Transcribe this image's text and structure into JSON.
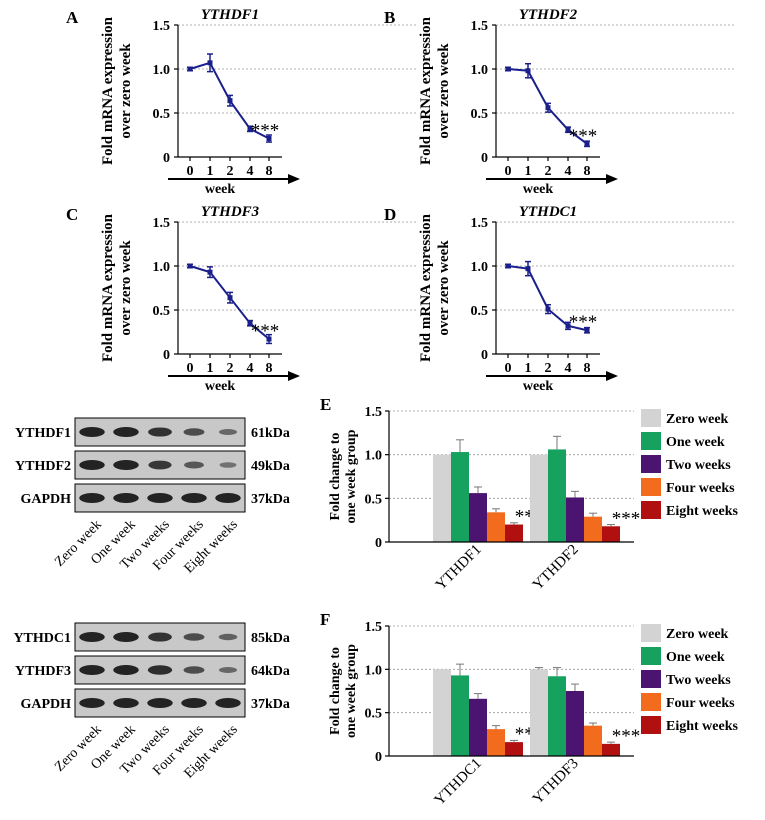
{
  "colors": {
    "line": "#1a1f8a",
    "bars": [
      "#d3d3d3",
      "#16a15f",
      "#4a1470",
      "#f36b1c",
      "#b01010"
    ]
  },
  "line_panels": [
    {
      "letter": "A",
      "title": "YTHDF1",
      "ylabel1": "Fold mRNA expression",
      "ylabel2": "over zero week",
      "xlabel": "week",
      "xticks": [
        "0",
        "1",
        "2",
        "4",
        "8"
      ],
      "yticks": [
        "0",
        "0.5",
        "1.0",
        "1.5"
      ],
      "values": [
        1.0,
        1.07,
        0.64,
        0.32,
        0.21
      ],
      "errors": [
        0.02,
        0.1,
        0.06,
        0.03,
        0.04
      ],
      "annotation": "***"
    },
    {
      "letter": "B",
      "title": "YTHDF2",
      "ylabel1": "Fold mRNA expression",
      "ylabel2": "over zero week",
      "xlabel": "week",
      "xticks": [
        "0",
        "1",
        "2",
        "4",
        "8"
      ],
      "yticks": [
        "0",
        "0.5",
        "1.0",
        "1.5"
      ],
      "values": [
        1.0,
        0.98,
        0.56,
        0.31,
        0.15
      ],
      "errors": [
        0.02,
        0.08,
        0.05,
        0.03,
        0.03
      ],
      "annotation": "***"
    },
    {
      "letter": "C",
      "title": "YTHDF3",
      "ylabel1": "Fold mRNA expression",
      "ylabel2": "over zero week",
      "xlabel": "week",
      "xticks": [
        "0",
        "1",
        "2",
        "4",
        "8"
      ],
      "yticks": [
        "0",
        "0.5",
        "1.0",
        "1.5"
      ],
      "values": [
        1.0,
        0.93,
        0.64,
        0.35,
        0.17
      ],
      "errors": [
        0.02,
        0.06,
        0.06,
        0.03,
        0.05
      ],
      "annotation": "***"
    },
    {
      "letter": "D",
      "title": "YTHDC1",
      "ylabel1": "Fold mRNA expression",
      "ylabel2": "over zero week",
      "xlabel": "week",
      "xticks": [
        "0",
        "1",
        "2",
        "4",
        "8"
      ],
      "yticks": [
        "0",
        "0.5",
        "1.0",
        "1.5"
      ],
      "values": [
        1.0,
        0.97,
        0.51,
        0.32,
        0.27
      ],
      "errors": [
        0.02,
        0.08,
        0.05,
        0.04,
        0.03
      ],
      "annotation": "***"
    }
  ],
  "blots": [
    {
      "rows": [
        {
          "label": "YTHDF1",
          "kda": "61kDa",
          "bands": [
            1.0,
            1.0,
            0.85,
            0.6,
            0.35
          ]
        },
        {
          "label": "YTHDF2",
          "kda": "49kDa",
          "bands": [
            1.0,
            1.0,
            0.8,
            0.5,
            0.25
          ]
        },
        {
          "label": "GAPDH",
          "kda": "37kDa",
          "bands": [
            1.0,
            1.0,
            1.0,
            1.0,
            1.0
          ]
        }
      ],
      "lanes": [
        "Zero week",
        "One week",
        "Two weeks",
        "Four weeks",
        "Eight weeks"
      ]
    },
    {
      "rows": [
        {
          "label": "YTHDC1",
          "kda": "85kDa",
          "bands": [
            1.0,
            1.0,
            0.85,
            0.6,
            0.4
          ]
        },
        {
          "label": "YTHDF3",
          "kda": "64kDa",
          "bands": [
            1.0,
            1.0,
            0.9,
            0.6,
            0.35
          ]
        },
        {
          "label": "GAPDH",
          "kda": "37kDa",
          "bands": [
            1.0,
            1.0,
            1.0,
            1.0,
            1.0
          ]
        }
      ],
      "lanes": [
        "Zero week",
        "One week",
        "Two weeks",
        "Four weeks",
        "Eight weeks"
      ]
    }
  ],
  "chart_data": [
    {
      "type": "bar",
      "letter": "E",
      "ylabel1": "Fold change to",
      "ylabel2": "one week group",
      "categories": [
        "YTHDF1",
        "YTHDF2"
      ],
      "yticks": [
        "0",
        "0.5",
        "1.0",
        "1.5"
      ],
      "ylim": [
        0,
        1.5
      ],
      "series": [
        {
          "name": "Zero week",
          "values": [
            1.0,
            1.0
          ],
          "errors": [
            0,
            0
          ]
        },
        {
          "name": "One week",
          "values": [
            1.03,
            1.06
          ],
          "errors": [
            0.14,
            0.15
          ]
        },
        {
          "name": "Two weeks",
          "values": [
            0.56,
            0.51
          ],
          "errors": [
            0.07,
            0.07
          ]
        },
        {
          "name": "Four weeks",
          "values": [
            0.34,
            0.29
          ],
          "errors": [
            0.04,
            0.04
          ]
        },
        {
          "name": "Eight weeks",
          "values": [
            0.2,
            0.18
          ],
          "errors": [
            0.02,
            0.02
          ]
        }
      ],
      "annotation": "***"
    },
    {
      "type": "bar",
      "letter": "F",
      "ylabel1": "Fold change to",
      "ylabel2": "one week group",
      "categories": [
        "YTHDC1",
        "YTHDF3"
      ],
      "yticks": [
        "0",
        "0.5",
        "1.0",
        "1.5"
      ],
      "ylim": [
        0,
        1.5
      ],
      "series": [
        {
          "name": "Zero week",
          "values": [
            1.0,
            1.0
          ],
          "errors": [
            0,
            0.02
          ]
        },
        {
          "name": "One week",
          "values": [
            0.93,
            0.92
          ],
          "errors": [
            0.13,
            0.1
          ]
        },
        {
          "name": "Two weeks",
          "values": [
            0.66,
            0.75
          ],
          "errors": [
            0.06,
            0.08
          ]
        },
        {
          "name": "Four weeks",
          "values": [
            0.31,
            0.35
          ],
          "errors": [
            0.04,
            0.03
          ]
        },
        {
          "name": "Eight weeks",
          "values": [
            0.16,
            0.14
          ],
          "errors": [
            0.02,
            0.02
          ]
        }
      ],
      "annotation": "***"
    }
  ]
}
